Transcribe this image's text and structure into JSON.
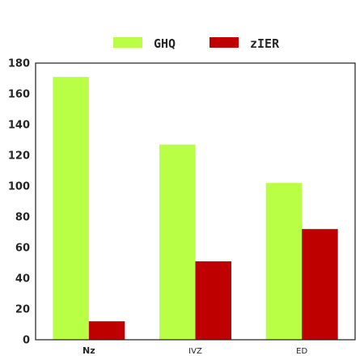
{
  "chart_data": {
    "type": "bar",
    "categories": [
      "Nz",
      "IVZ",
      "ED"
    ],
    "category_bold": [
      true,
      false,
      false
    ],
    "series": [
      {
        "name": "GHQ",
        "color": "#b8ff45",
        "values": [
          171,
          127,
          102
        ]
      },
      {
        "name": "zIER",
        "color": "#bf0000",
        "values": [
          12,
          51,
          72
        ]
      }
    ],
    "yticks": [
      "0",
      "20",
      "40",
      "60",
      "80",
      "100",
      "120",
      "140",
      "160",
      "180"
    ],
    "ylim": [
      0,
      180
    ],
    "grid": false,
    "legend_position": "top-center"
  }
}
